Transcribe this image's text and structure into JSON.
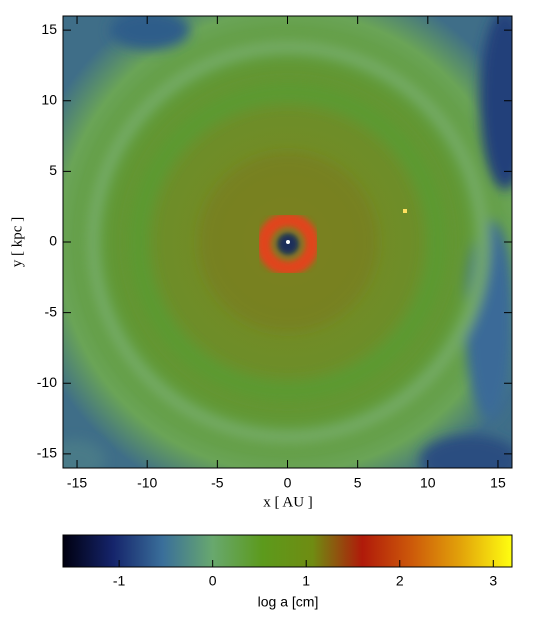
{
  "chart_data": {
    "type": "heatmap",
    "x_label": "x [ AU ]",
    "y_label": "y [ kpc ]",
    "xlim": [
      -16,
      16
    ],
    "ylim": [
      -16,
      16
    ],
    "xticks": [
      -15,
      -10,
      -5,
      0,
      5,
      10,
      15
    ],
    "yticks": [
      -15,
      -10,
      -5,
      0,
      5,
      10,
      15
    ],
    "colorbar": {
      "label": "log a [cm]",
      "lim": [
        -1.6,
        3.2
      ],
      "ticks": [
        -1,
        0,
        1,
        2,
        3
      ],
      "colormap": [
        "#000010",
        "#15246b",
        "#3a6f9a",
        "#68a86e",
        "#5c9a1c",
        "#6f8c12",
        "#b01a0a",
        "#cd5a0a",
        "#e3a50a",
        "#ffff10"
      ]
    }
  }
}
